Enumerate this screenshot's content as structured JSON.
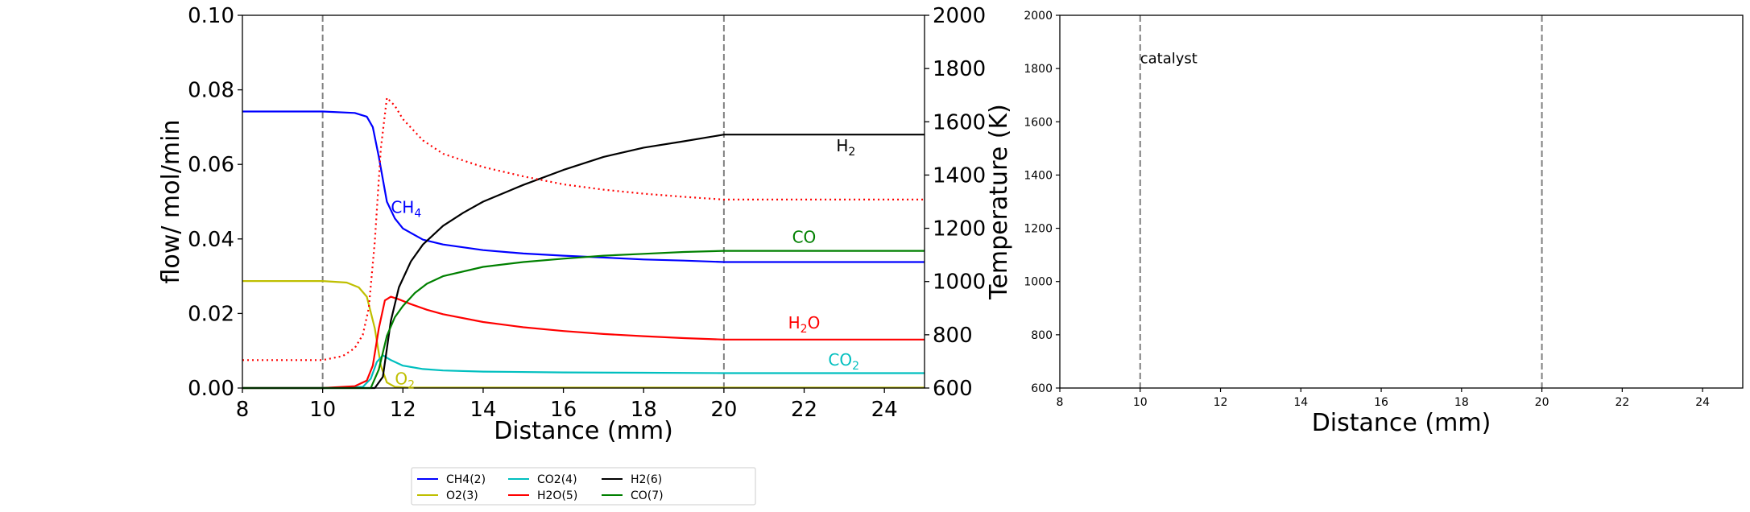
{
  "chart_data": [
    {
      "type": "line",
      "xlabel": "Distance (mm)",
      "ylabel": "flow/ mol/min",
      "y2label": "Temperature (K)",
      "xlim": [
        8,
        25
      ],
      "ylim": [
        0,
        0.1
      ],
      "y2lim": [
        600,
        2000
      ],
      "xticks": [
        "8",
        "10",
        "12",
        "14",
        "16",
        "18",
        "20",
        "22",
        "24"
      ],
      "yticks": [
        "0.00",
        "0.02",
        "0.04",
        "0.06",
        "0.08",
        "0.10"
      ],
      "y2ticks": [
        "600",
        "800",
        "1000",
        "1200",
        "1400",
        "1600",
        "1800",
        "2000"
      ],
      "vlines": [
        10,
        20
      ],
      "series": [
        {
          "name": "CH4(2)",
          "color": "#0000ff",
          "style": "solid",
          "x": [
            8,
            10,
            10.8,
            11.1,
            11.25,
            11.4,
            11.6,
            11.8,
            12,
            12.5,
            13,
            14,
            15,
            16,
            17,
            18,
            19,
            20,
            25
          ],
          "y": [
            0.0742,
            0.0742,
            0.0738,
            0.0728,
            0.07,
            0.062,
            0.05,
            0.0455,
            0.0428,
            0.0398,
            0.0385,
            0.037,
            0.0361,
            0.0355,
            0.035,
            0.0345,
            0.0342,
            0.0338,
            0.0338
          ]
        },
        {
          "name": "O2(3)",
          "color": "#bfbf00",
          "style": "solid",
          "x": [
            8,
            10,
            10.6,
            10.9,
            11.1,
            11.3,
            11.45,
            11.6,
            11.8,
            12.2,
            25
          ],
          "y": [
            0.0287,
            0.0287,
            0.0283,
            0.027,
            0.0245,
            0.016,
            0.006,
            0.0015,
            0.0003,
            0.0001,
            0.0001
          ]
        },
        {
          "name": "CO2(4)",
          "color": "#00bfbf",
          "style": "solid",
          "x": [
            8,
            10,
            11,
            11.2,
            11.35,
            11.5,
            11.7,
            12,
            12.5,
            13,
            14,
            16,
            18,
            20,
            25
          ],
          "y": [
            0,
            0,
            0.0003,
            0.0025,
            0.007,
            0.0088,
            0.0075,
            0.006,
            0.0051,
            0.0047,
            0.0044,
            0.0042,
            0.0041,
            0.004,
            0.004
          ]
        },
        {
          "name": "H2O(5)",
          "color": "#ff0000",
          "style": "solid",
          "x": [
            8,
            10,
            10.8,
            11.1,
            11.25,
            11.4,
            11.55,
            11.7,
            11.9,
            12.2,
            12.6,
            13,
            14,
            15,
            16,
            17,
            18,
            19,
            20,
            25
          ],
          "y": [
            0,
            0,
            0.0005,
            0.002,
            0.006,
            0.016,
            0.0235,
            0.0245,
            0.0238,
            0.0225,
            0.021,
            0.0198,
            0.0177,
            0.0163,
            0.0153,
            0.0145,
            0.0139,
            0.0134,
            0.013,
            0.013
          ]
        },
        {
          "name": "H2(6)",
          "color": "#000000",
          "style": "solid",
          "x": [
            8,
            11.3,
            11.5,
            11.7,
            11.9,
            12.2,
            12.5,
            13,
            13.5,
            14,
            15,
            16,
            17,
            18,
            19,
            20,
            25
          ],
          "y": [
            0,
            0,
            0.003,
            0.018,
            0.027,
            0.034,
            0.0385,
            0.0435,
            0.047,
            0.05,
            0.0545,
            0.0585,
            0.062,
            0.0645,
            0.0662,
            0.068,
            0.068
          ]
        },
        {
          "name": "CO(7)",
          "color": "#008000",
          "style": "solid",
          "x": [
            8,
            11.2,
            11.4,
            11.6,
            11.8,
            12,
            12.3,
            12.6,
            13,
            14,
            15,
            16,
            17,
            18,
            19,
            20,
            25
          ],
          "y": [
            0,
            0,
            0.005,
            0.014,
            0.019,
            0.022,
            0.0255,
            0.028,
            0.03,
            0.0325,
            0.0338,
            0.0347,
            0.0355,
            0.036,
            0.0365,
            0.0368,
            0.0368
          ]
        },
        {
          "color": "#ff0000",
          "style": "dotted",
          "axis": "y2",
          "x": [
            8,
            10,
            10.5,
            10.8,
            11.0,
            11.15,
            11.3,
            11.45,
            11.6,
            11.8,
            12,
            12.5,
            13,
            14,
            15,
            16,
            17,
            18,
            19,
            20,
            25
          ],
          "y": [
            705,
            705,
            720,
            750,
            800,
            900,
            1150,
            1500,
            1690,
            1660,
            1610,
            1530,
            1480,
            1430,
            1395,
            1365,
            1345,
            1330,
            1318,
            1308,
            1308
          ]
        }
      ],
      "annotations": [
        {
          "text": "CH",
          "sub": "4",
          "color": "#0000ff",
          "x": 11.7,
          "y": 0.047
        },
        {
          "text": "H",
          "sub": "2",
          "color": "#000000",
          "x": 22.8,
          "y": 0.0635
        },
        {
          "text": "CO",
          "sub": "",
          "color": "#008000",
          "x": 21.7,
          "y": 0.039
        },
        {
          "text": "H",
          "sub": "2",
          "suffix": "O",
          "color": "#ff0000",
          "x": 21.6,
          "y": 0.016
        },
        {
          "text": "CO",
          "sub": "2",
          "color": "#00bfbf",
          "x": 22.6,
          "y": 0.006
        },
        {
          "text": "O",
          "sub": "2",
          "color": "#bfbf00",
          "x": 11.8,
          "y": 0.001
        }
      ],
      "legend": {
        "placement": "below",
        "entries": [
          {
            "label": "CH4(2)",
            "color": "#0000ff"
          },
          {
            "label": "O2(3)",
            "color": "#bfbf00"
          },
          {
            "label": "CO2(4)",
            "color": "#00bfbf"
          },
          {
            "label": "H2O(5)",
            "color": "#ff0000"
          },
          {
            "label": "H2(6)",
            "color": "#000000"
          },
          {
            "label": "CO(7)",
            "color": "#008000"
          }
        ]
      }
    },
    {
      "type": "line",
      "xlabel": "Distance (mm)",
      "xlim": [
        8,
        25
      ],
      "ylim": [
        600,
        2000
      ],
      "xticks": [
        "8",
        "10",
        "12",
        "14",
        "16",
        "18",
        "20",
        "22",
        "24"
      ],
      "yticks": [
        "600",
        "800",
        "1000",
        "1200",
        "1400",
        "1600",
        "1800",
        "2000"
      ],
      "vlines": [
        10,
        20
      ],
      "annotations": [
        {
          "text": "catalyst",
          "color": "#000000",
          "x": 10,
          "y": 1820
        }
      ]
    }
  ]
}
